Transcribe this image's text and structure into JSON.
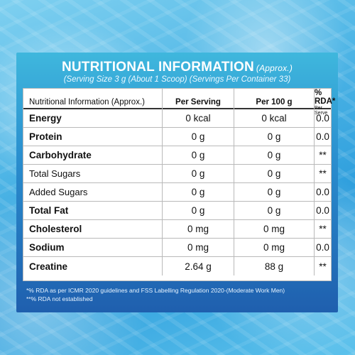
{
  "panel": {
    "title": "NUTRITIONAL INFORMATION",
    "title_suffix": "(Approx.)",
    "subtitle": "(Serving Size 3 g (About 1 Scoop) (Servings Per Container 33)"
  },
  "table": {
    "headers": {
      "name": "Nutritional Information (Approx.)",
      "per_serving": "Per Serving",
      "per_100g": "Per 100 g",
      "rda": "% RDA*",
      "rda_sub": "Per Serve"
    },
    "rows": [
      {
        "name": "Energy",
        "per_serving": "0 kcal",
        "per_100g": "0 kcal",
        "rda": "0.0"
      },
      {
        "name": "Protein",
        "per_serving": "0 g",
        "per_100g": "0 g",
        "rda": "0.0"
      },
      {
        "name": "Carbohydrate",
        "per_serving": "0 g",
        "per_100g": "0 g",
        "rda": "**"
      },
      {
        "name": "Total Sugars",
        "per_serving": "0 g",
        "per_100g": "0 g",
        "rda": "**"
      },
      {
        "name": "Added Sugars",
        "per_serving": "0 g",
        "per_100g": "0 g",
        "rda": "0.0"
      },
      {
        "name": "Total Fat",
        "per_serving": "0 g",
        "per_100g": "0 g",
        "rda": "0.0"
      },
      {
        "name": "Cholesterol",
        "per_serving": "0 mg",
        "per_100g": "0 mg",
        "rda": "**"
      },
      {
        "name": "Sodium",
        "per_serving": "0 mg",
        "per_100g": "0 mg",
        "rda": "0.0"
      },
      {
        "name": "Creatine",
        "per_serving": "2.64 g",
        "per_100g": "88 g",
        "rda": "**"
      }
    ]
  },
  "footnotes": {
    "line1": "*% RDA as per ICMR 2020 guidelines and FSS Labelling Regulation 2020-(Moderate Work Men)",
    "line2": "**% RDA not established"
  },
  "colors": {
    "panel_top": "#3fb7dd",
    "panel_bottom": "#1f5fae",
    "water": "#4fb6e6"
  }
}
